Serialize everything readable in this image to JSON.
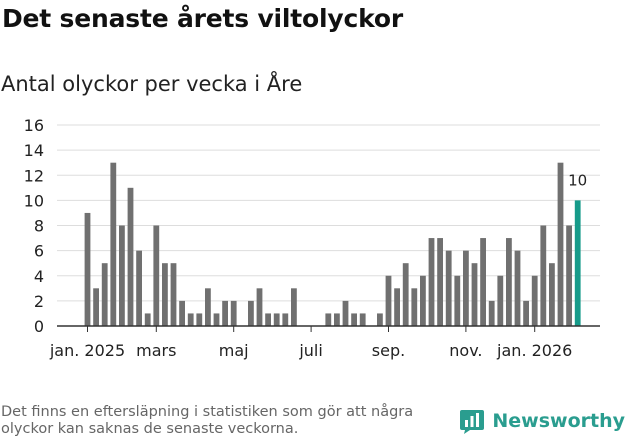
{
  "title": "Det senaste årets viltolyckor",
  "subtitle": "Antal olyckor per vecka i Åre",
  "note": "Det finns en eftersläpning i statistiken som gör att några olyckor kan saknas de senaste veckorna.",
  "brand": {
    "name": "Newsworthy",
    "icon": "newsworthy-logo-icon"
  },
  "colors": {
    "bar": "#707070",
    "highlight": "#169b8a",
    "grid": "#dddddd",
    "axis": "#333333"
  },
  "chart_data": {
    "type": "bar",
    "title": "Det senaste årets viltolyckor",
    "subtitle": "Antal olyckor per vecka i Åre",
    "xlabel": "",
    "ylabel": "",
    "ylim": [
      0,
      16
    ],
    "yticks": [
      0,
      2,
      4,
      6,
      8,
      10,
      12,
      14,
      16
    ],
    "grid": true,
    "legend": "none",
    "x_tick_labels": [
      {
        "label": "jan. 2025",
        "week_index": 0
      },
      {
        "label": "mars",
        "week_index": 8
      },
      {
        "label": "maj",
        "week_index": 17
      },
      {
        "label": "juli",
        "week_index": 26
      },
      {
        "label": "sep.",
        "week_index": 35
      },
      {
        "label": "nov.",
        "week_index": 44
      },
      {
        "label": "jan. 2026",
        "week_index": 52
      }
    ],
    "values": [
      9,
      3,
      5,
      13,
      8,
      11,
      6,
      1,
      8,
      5,
      5,
      2,
      1,
      1,
      3,
      1,
      2,
      2,
      0,
      2,
      3,
      1,
      1,
      1,
      3,
      0,
      0,
      0,
      1,
      1,
      2,
      1,
      1,
      0,
      1,
      4,
      3,
      5,
      3,
      4,
      7,
      7,
      6,
      4,
      6,
      5,
      7,
      2,
      4,
      7,
      6,
      2,
      4,
      8,
      5,
      13,
      8,
      10
    ],
    "highlight": {
      "index": 57,
      "label": "10"
    }
  }
}
